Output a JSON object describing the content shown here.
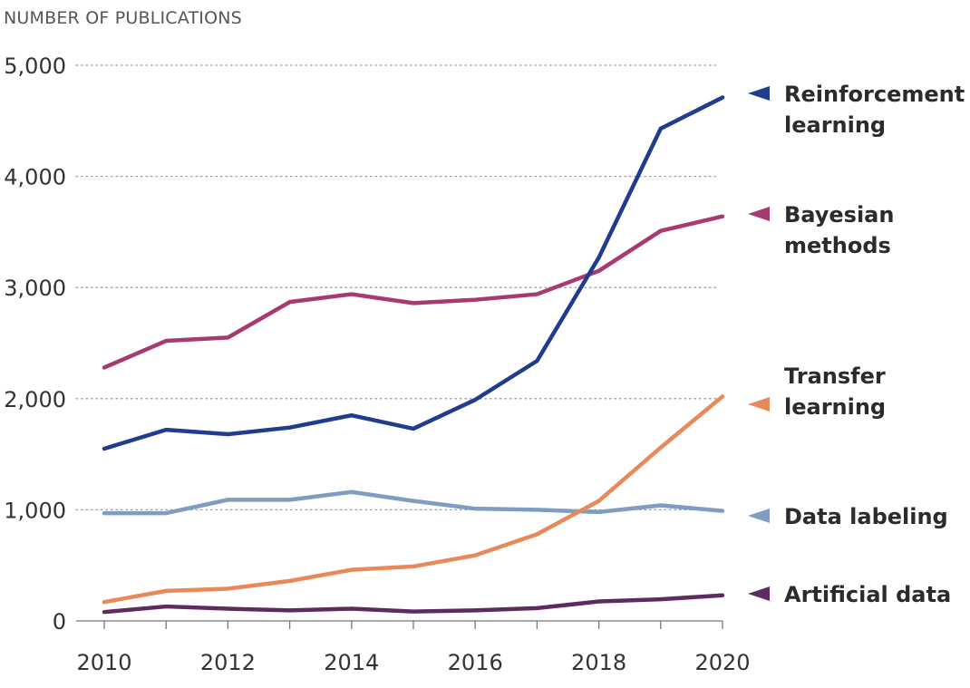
{
  "chart_data": {
    "type": "line",
    "title": "",
    "ylabel": "NUMBER OF PUBLICATIONS",
    "xlabel": "",
    "x": [
      2010,
      2011,
      2012,
      2013,
      2014,
      2015,
      2016,
      2017,
      2018,
      2019,
      2020
    ],
    "x_ticks": [
      2010,
      2012,
      2014,
      2016,
      2018,
      2020
    ],
    "x_tick_labels": [
      "2010",
      "2012",
      "2014",
      "2016",
      "2018",
      "2020"
    ],
    "xlim": [
      2010,
      2020
    ],
    "ylim": [
      0,
      5000
    ],
    "y_ticks": [
      0,
      1000,
      2000,
      3000,
      4000,
      5000
    ],
    "y_tick_labels": [
      "0",
      "1,000",
      "2,000",
      "3,000",
      "4,000",
      "5,000"
    ],
    "grid": "horizontal dotted",
    "legend_placement": "right",
    "series": [
      {
        "name": "Reinforcement learning",
        "label_lines": [
          "Reinforcement",
          "learning"
        ],
        "color": "#1f3c8f",
        "values": [
          1550,
          1720,
          1680,
          1740,
          1850,
          1730,
          1990,
          2340,
          3270,
          4430,
          4710
        ]
      },
      {
        "name": "Bayesian methods",
        "label_lines": [
          "Bayesian",
          "methods"
        ],
        "color": "#a83a72",
        "values": [
          2280,
          2520,
          2550,
          2870,
          2940,
          2860,
          2890,
          2940,
          3150,
          3510,
          3640
        ]
      },
      {
        "name": "Transfer learning",
        "label_lines": [
          "Transfer",
          "learning"
        ],
        "color": "#e8895a",
        "values": [
          170,
          270,
          290,
          360,
          460,
          490,
          590,
          780,
          1080,
          1560,
          2020
        ]
      },
      {
        "name": "Data labeling",
        "label_lines": [
          "Data labeling"
        ],
        "color": "#7f9cc2",
        "values": [
          970,
          970,
          1090,
          1090,
          1160,
          1080,
          1010,
          1000,
          980,
          1040,
          990
        ]
      },
      {
        "name": "Artificial data",
        "label_lines": [
          "Artificial data"
        ],
        "color": "#5e2a62",
        "values": [
          80,
          130,
          110,
          95,
          110,
          85,
          95,
          115,
          175,
          195,
          230
        ]
      }
    ]
  }
}
